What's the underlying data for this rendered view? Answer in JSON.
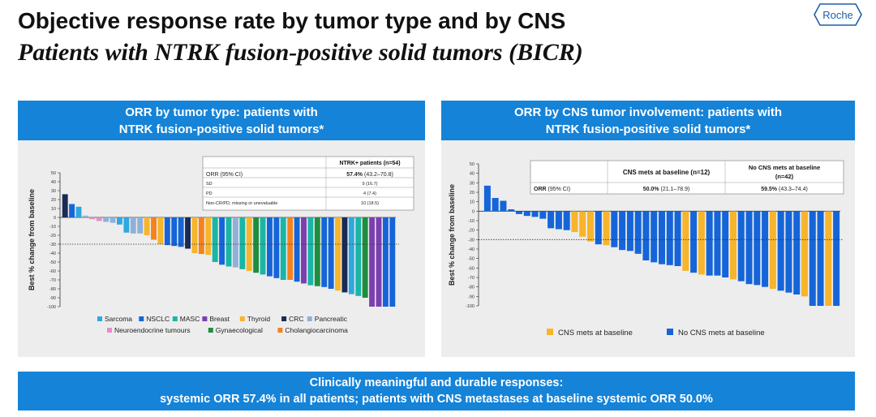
{
  "header": {
    "title": "Objective response rate by tumor type and by CNS",
    "subtitle": "Patients with NTRK fusion-positive solid tumors (BICR)",
    "logo_text": "Roche"
  },
  "left_panel": {
    "heading_line1": "ORR by tumor type: patients with",
    "heading_line2": "NTRK fusion-positive solid tumors*",
    "table": {
      "col_header": "NTRK+ patients (n=54)",
      "rows": [
        {
          "label": "ORR (95% CI)",
          "value_bold": "57.4%",
          "value": "(43.2–70.8)"
        },
        {
          "label": "SD",
          "value_bold": "",
          "value": "9 (16.7)"
        },
        {
          "label": "PD",
          "value_bold": "",
          "value": "4 (7.4)"
        },
        {
          "label": "Non-CR/PD, missing or unevaluable",
          "value_bold": "",
          "value": "10 (18.5)"
        }
      ]
    }
  },
  "right_panel": {
    "heading_line1": "ORR by CNS tumor involvement: patients with",
    "heading_line2": "NTRK fusion-positive solid tumors*",
    "table": {
      "col1_header": "CNS mets at baseline (n=12)",
      "col2_header_line1": "No CNS mets at baseline",
      "col2_header_line2": "(n=42)",
      "row_label": "ORR",
      "row_label_suffix": "(95% CI)",
      "col1_bold": "50.0%",
      "col1_value": "(21.1–78.9)",
      "col2_bold": "59.5%",
      "col2_value": "(43.3–74.4)"
    }
  },
  "chart_data": [
    {
      "type": "bar",
      "title": "ORR by tumor type",
      "ylabel": "Best % change from baseline",
      "ylim": [
        -100,
        50
      ],
      "yticks": [
        50,
        40,
        30,
        20,
        10,
        0,
        -10,
        -20,
        -30,
        -40,
        -50,
        -60,
        -70,
        -80,
        -90,
        -100
      ],
      "reference_line": -30,
      "colors": {
        "Sarcoma": "#2ea8e0",
        "NSCLC": "#1565d8",
        "MASC": "#19b6a6",
        "Breast": "#7b3fb0",
        "Thyroid": "#f7b52b",
        "CRC": "#1a2a55",
        "Pancreatic": "#8fb1d9",
        "Neuroendocrine tumours": "#e58ec8",
        "Gynaecological": "#1e8e3e",
        "Cholangiocarcinoma": "#f5821f"
      },
      "legend_row1": [
        "Sarcoma",
        "NSCLC",
        "MASC",
        "Breast",
        "Thyroid",
        "CRC",
        "Pancreatic"
      ],
      "legend_row2": [
        "Neuroendocrine tumours",
        "Gynaecological",
        "Cholangiocarcinoma"
      ],
      "series": [
        {
          "category": "CRC",
          "value": 26
        },
        {
          "category": "NSCLC",
          "value": 15
        },
        {
          "category": "Sarcoma",
          "value": 12
        },
        {
          "category": "Pancreatic",
          "value": 2
        },
        {
          "category": "Neuroendocrine tumours",
          "value": -2
        },
        {
          "category": "Neuroendocrine tumours",
          "value": -4
        },
        {
          "category": "Pancreatic",
          "value": -5
        },
        {
          "category": "Pancreatic",
          "value": -6
        },
        {
          "category": "Sarcoma",
          "value": -8
        },
        {
          "category": "Sarcoma",
          "value": -17
        },
        {
          "category": "Pancreatic",
          "value": -18
        },
        {
          "category": "Pancreatic",
          "value": -18
        },
        {
          "category": "Thyroid",
          "value": -20
        },
        {
          "category": "Cholangiocarcinoma",
          "value": -25
        },
        {
          "category": "Thyroid",
          "value": -30
        },
        {
          "category": "NSCLC",
          "value": -31
        },
        {
          "category": "NSCLC",
          "value": -32
        },
        {
          "category": "NSCLC",
          "value": -33
        },
        {
          "category": "CRC",
          "value": -35
        },
        {
          "category": "Thyroid",
          "value": -40
        },
        {
          "category": "Cholangiocarcinoma",
          "value": -41
        },
        {
          "category": "Thyroid",
          "value": -42
        },
        {
          "category": "MASC",
          "value": -50
        },
        {
          "category": "NSCLC",
          "value": -53
        },
        {
          "category": "MASC",
          "value": -55
        },
        {
          "category": "Pancreatic",
          "value": -56
        },
        {
          "category": "MASC",
          "value": -58
        },
        {
          "category": "Thyroid",
          "value": -60
        },
        {
          "category": "Gynaecological",
          "value": -62
        },
        {
          "category": "MASC",
          "value": -64
        },
        {
          "category": "NSCLC",
          "value": -66
        },
        {
          "category": "NSCLC",
          "value": -68
        },
        {
          "category": "MASC",
          "value": -70
        },
        {
          "category": "Cholangiocarcinoma",
          "value": -70
        },
        {
          "category": "NSCLC",
          "value": -72
        },
        {
          "category": "Breast",
          "value": -74
        },
        {
          "category": "MASC",
          "value": -76
        },
        {
          "category": "Gynaecological",
          "value": -77
        },
        {
          "category": "NSCLC",
          "value": -78
        },
        {
          "category": "NSCLC",
          "value": -80
        },
        {
          "category": "Thyroid",
          "value": -82
        },
        {
          "category": "CRC",
          "value": -84
        },
        {
          "category": "Sarcoma",
          "value": -86
        },
        {
          "category": "MASC",
          "value": -88
        },
        {
          "category": "Gynaecological",
          "value": -90
        },
        {
          "category": "Breast",
          "value": -100
        },
        {
          "category": "Breast",
          "value": -100
        },
        {
          "category": "NSCLC",
          "value": -100
        },
        {
          "category": "NSCLC",
          "value": -100
        }
      ]
    },
    {
      "type": "bar",
      "title": "ORR by CNS tumor involvement",
      "ylabel": "Best % change from baseline",
      "ylim": [
        -100,
        50
      ],
      "yticks": [
        50,
        40,
        30,
        20,
        10,
        0,
        -10,
        -20,
        -30,
        -40,
        -50,
        -60,
        -70,
        -80,
        -90,
        -100
      ],
      "reference_line": -30,
      "colors": {
        "CNS mets at baseline": "#f7b52b",
        "No CNS mets at baseline": "#1565d8"
      },
      "legend": [
        "CNS mets at baseline",
        "No CNS mets at baseline"
      ],
      "series": [
        {
          "category": "No CNS mets at baseline",
          "value": 27
        },
        {
          "category": "No CNS mets at baseline",
          "value": 14
        },
        {
          "category": "No CNS mets at baseline",
          "value": 11
        },
        {
          "category": "No CNS mets at baseline",
          "value": 2
        },
        {
          "category": "No CNS mets at baseline",
          "value": -3
        },
        {
          "category": "No CNS mets at baseline",
          "value": -5
        },
        {
          "category": "No CNS mets at baseline",
          "value": -6
        },
        {
          "category": "No CNS mets at baseline",
          "value": -8
        },
        {
          "category": "No CNS mets at baseline",
          "value": -18
        },
        {
          "category": "No CNS mets at baseline",
          "value": -19
        },
        {
          "category": "No CNS mets at baseline",
          "value": -20
        },
        {
          "category": "CNS mets at baseline",
          "value": -22
        },
        {
          "category": "CNS mets at baseline",
          "value": -27
        },
        {
          "category": "CNS mets at baseline",
          "value": -32
        },
        {
          "category": "No CNS mets at baseline",
          "value": -35
        },
        {
          "category": "CNS mets at baseline",
          "value": -36
        },
        {
          "category": "No CNS mets at baseline",
          "value": -38
        },
        {
          "category": "No CNS mets at baseline",
          "value": -41
        },
        {
          "category": "No CNS mets at baseline",
          "value": -42
        },
        {
          "category": "No CNS mets at baseline",
          "value": -45
        },
        {
          "category": "No CNS mets at baseline",
          "value": -52
        },
        {
          "category": "No CNS mets at baseline",
          "value": -54
        },
        {
          "category": "No CNS mets at baseline",
          "value": -56
        },
        {
          "category": "No CNS mets at baseline",
          "value": -57
        },
        {
          "category": "No CNS mets at baseline",
          "value": -58
        },
        {
          "category": "CNS mets at baseline",
          "value": -63
        },
        {
          "category": "No CNS mets at baseline",
          "value": -65
        },
        {
          "category": "CNS mets at baseline",
          "value": -67
        },
        {
          "category": "No CNS mets at baseline",
          "value": -68
        },
        {
          "category": "No CNS mets at baseline",
          "value": -68
        },
        {
          "category": "No CNS mets at baseline",
          "value": -70
        },
        {
          "category": "CNS mets at baseline",
          "value": -72
        },
        {
          "category": "No CNS mets at baseline",
          "value": -74
        },
        {
          "category": "No CNS mets at baseline",
          "value": -77
        },
        {
          "category": "No CNS mets at baseline",
          "value": -78
        },
        {
          "category": "No CNS mets at baseline",
          "value": -80
        },
        {
          "category": "CNS mets at baseline",
          "value": -82
        },
        {
          "category": "No CNS mets at baseline",
          "value": -84
        },
        {
          "category": "No CNS mets at baseline",
          "value": -86
        },
        {
          "category": "No CNS mets at baseline",
          "value": -88
        },
        {
          "category": "CNS mets at baseline",
          "value": -90
        },
        {
          "category": "No CNS mets at baseline",
          "value": -100
        },
        {
          "category": "No CNS mets at baseline",
          "value": -100
        },
        {
          "category": "CNS mets at baseline",
          "value": -100
        },
        {
          "category": "No CNS mets at baseline",
          "value": -100
        }
      ]
    }
  ],
  "footer": {
    "line1": "Clinically meaningful and durable responses:",
    "line2": "systemic ORR 57.4% in all patients; patients with CNS metastases at baseline systemic ORR 50.0%"
  }
}
